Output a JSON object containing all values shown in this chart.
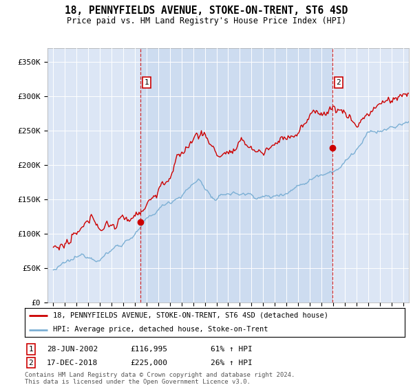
{
  "title": "18, PENNYFIELDS AVENUE, STOKE-ON-TRENT, ST6 4SD",
  "subtitle": "Price paid vs. HM Land Registry's House Price Index (HPI)",
  "background_color": "#dce6f5",
  "plot_bg_color": "#dce6f5",
  "red_line_color": "#cc0000",
  "blue_line_color": "#7bafd4",
  "shade_color": "#c8d8ee",
  "ylabel_values": [
    "£0",
    "£50K",
    "£100K",
    "£150K",
    "£200K",
    "£250K",
    "£300K",
    "£350K"
  ],
  "ylim": [
    0,
    370000
  ],
  "xlim_start": 1994.5,
  "xlim_end": 2025.5,
  "ann1_x": 2002.5,
  "ann1_y": 116995,
  "ann2_x": 2018.96,
  "ann2_y": 225000,
  "annotation1": {
    "date": "28-JUN-2002",
    "price": "£116,995",
    "pct": "61% ↑ HPI"
  },
  "annotation2": {
    "date": "17-DEC-2018",
    "price": "£225,000",
    "pct": "26% ↑ HPI"
  },
  "legend_line1": "18, PENNYFIELDS AVENUE, STOKE-ON-TRENT, ST6 4SD (detached house)",
  "legend_line2": "HPI: Average price, detached house, Stoke-on-Trent",
  "footer1": "Contains HM Land Registry data © Crown copyright and database right 2024.",
  "footer2": "This data is licensed under the Open Government Licence v3.0.",
  "xticks": [
    1995,
    1996,
    1997,
    1998,
    1999,
    2000,
    2001,
    2002,
    2003,
    2004,
    2005,
    2006,
    2007,
    2008,
    2009,
    2010,
    2011,
    2012,
    2013,
    2014,
    2015,
    2016,
    2017,
    2018,
    2019,
    2020,
    2021,
    2022,
    2023,
    2024,
    2025
  ]
}
